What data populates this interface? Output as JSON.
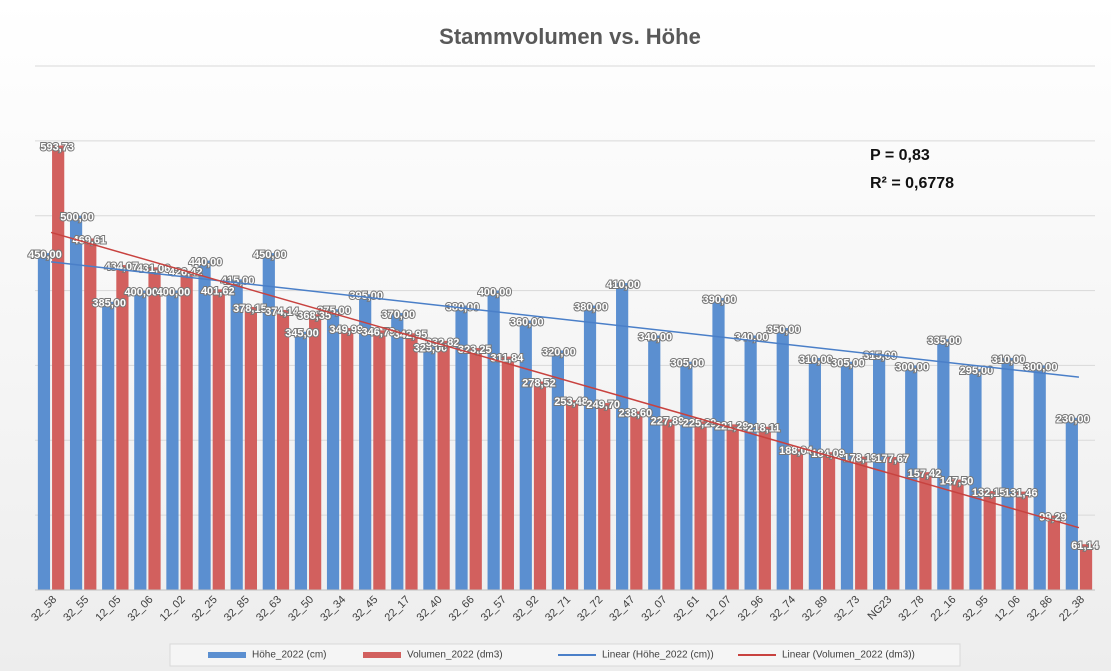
{
  "chart_data": {
    "type": "bar",
    "title": "Stammvolumen vs. Höhe",
    "annotations": [
      "P = 0,83",
      "R² = 0,6778"
    ],
    "categories": [
      "32_58",
      "32_55",
      "12_05",
      "32_06",
      "12_02",
      "32_25",
      "32_85",
      "32_63",
      "32_50",
      "32_34",
      "32_45",
      "22_17",
      "32_40",
      "32_66",
      "32_57",
      "32_92",
      "32_71",
      "32_72",
      "32_47",
      "32_07",
      "32_61",
      "12_07",
      "32_96",
      "32_74",
      "32_89",
      "32_73",
      "NG23",
      "32_78",
      "22_16",
      "32_95",
      "12_06",
      "32_86",
      "22_38"
    ],
    "series": [
      {
        "name": "Höhe_2022 (cm)",
        "color": "#5b8fd0",
        "values": [
          450,
          500,
          385,
          400,
          400,
          440,
          415,
          450,
          345,
          375,
          395,
          370,
          325,
          380,
          400,
          360,
          320,
          380,
          410,
          340,
          305,
          390,
          340,
          350,
          310,
          305,
          315,
          300,
          335,
          295,
          310,
          300,
          230
        ],
        "value_labels": [
          "450,00",
          "500,00",
          "385,00",
          "400,00",
          "400,00",
          "440,00",
          "415,00",
          "450,00",
          "345,00",
          "375,00",
          "395,00",
          "370,00",
          "325,00",
          "380,00",
          "400,00",
          "360,00",
          "320,00",
          "380,00",
          "410,00",
          "340,00",
          "305,00",
          "390,00",
          "340,00",
          "350,00",
          "310,00",
          "305,00",
          "315,00",
          "300,00",
          "335,00",
          "295,00",
          "310,00",
          "300,00",
          "230,00"
        ]
      },
      {
        "name": "Volumen_2022 (dm3)",
        "color": "#d2605e",
        "values": [
          593.73,
          469.61,
          434.07,
          431.06,
          426.42,
          401.62,
          378.15,
          374.14,
          368.35,
          349.99,
          346.79,
          342.95,
          332.82,
          323.25,
          311.84,
          278.52,
          253.48,
          249.7,
          238.6,
          227.89,
          225.29,
          221.29,
          218.11,
          188.04,
          184.09,
          178.19,
          177.67,
          157.42,
          147.5,
          132.15,
          131.46,
          99.29,
          61.14
        ],
        "value_labels": [
          "593,73",
          "469,61",
          "434,07",
          "431,06",
          "426,42",
          "401,62",
          "378,15",
          "374,14",
          "368,35",
          "349,99",
          "346,79",
          "342,95",
          "332,82",
          "323,25",
          "311,84",
          "278,52",
          "253,48",
          "249,70",
          "238,60",
          "227,89",
          "225,29",
          "221,29",
          "218,11",
          "188,04",
          "184,09",
          "178,19",
          "177,67",
          "157,42",
          "147,50",
          "132,15",
          "131,46",
          "99,29",
          "61,14"
        ]
      }
    ],
    "trendlines": [
      {
        "name": "Linear (Höhe_2022 (cm))",
        "color": "#4a7fc8"
      },
      {
        "name": "Linear (Volumen_2022 (dm3))",
        "color": "#c8423f"
      }
    ],
    "ylim": [
      0,
      700
    ],
    "yticks": [
      0,
      100,
      200,
      300,
      400,
      500,
      600,
      700
    ],
    "grid": true
  }
}
